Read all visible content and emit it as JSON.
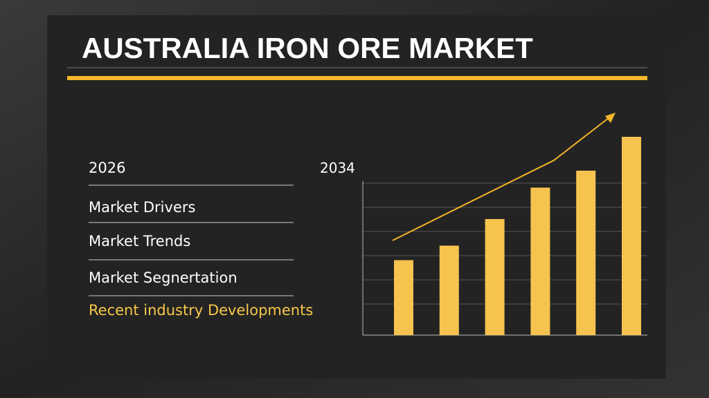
{
  "header": {
    "title": "AUSTRALIA IRON ORE MARKET"
  },
  "start_year": "2026",
  "menu": [
    "Market  Drivers",
    "Market  Trends",
    "Market Segnertation",
    "Recent industry  Developments"
  ],
  "chart_data": {
    "type": "bar",
    "title": "2034",
    "values": [
      3.1,
      3.7,
      4.8,
      6.1,
      6.8,
      8.2
    ],
    "color": "#f7c34f",
    "ylim": [
      0,
      9
    ]
  }
}
